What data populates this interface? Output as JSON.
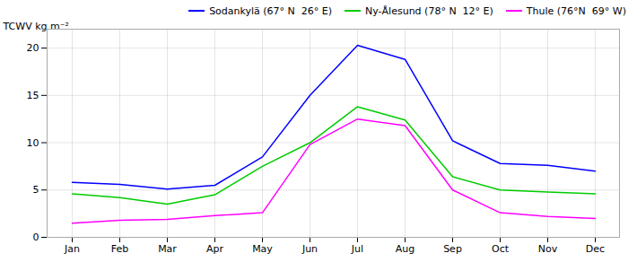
{
  "chart_data": {
    "type": "line",
    "categories": [
      "Jan",
      "Feb",
      "Mar",
      "Apr",
      "May",
      "Jun",
      "Jul",
      "Aug",
      "Sep",
      "Oct",
      "Nov",
      "Dec"
    ],
    "series": [
      {
        "name": "Sodankylä (67° N  26° E)",
        "color": "#0000ff",
        "values": [
          5.8,
          5.6,
          5.1,
          5.5,
          8.5,
          15.0,
          20.3,
          18.8,
          10.2,
          7.8,
          7.6,
          7.0
        ]
      },
      {
        "name": "Ny-Ålesund (78° N  12° E)",
        "color": "#00cc00",
        "values": [
          4.6,
          4.2,
          3.5,
          4.5,
          7.5,
          10.0,
          13.8,
          12.4,
          6.4,
          5.0,
          4.8,
          4.6
        ]
      },
      {
        "name": "Thule (76°N  69° W)",
        "color": "#ff00ff",
        "values": [
          1.5,
          1.8,
          1.9,
          2.3,
          2.6,
          9.8,
          12.5,
          11.8,
          5.0,
          2.6,
          2.2,
          2.0
        ]
      }
    ],
    "ylabel": "TCWV kg m⁻²",
    "ylim": [
      0,
      22
    ],
    "yticks": [
      0,
      5,
      10,
      15,
      20
    ],
    "grid": true,
    "legend": "upper right"
  }
}
